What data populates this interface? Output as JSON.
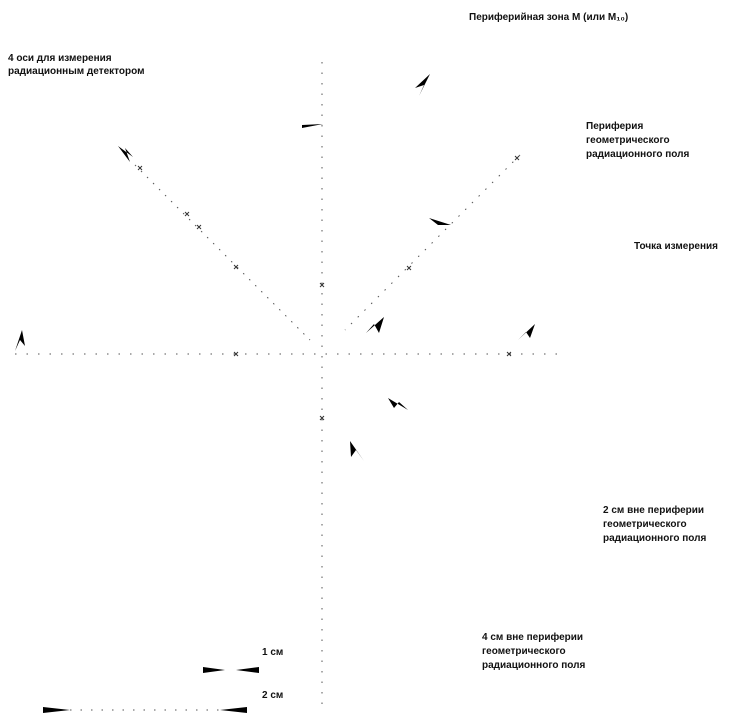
{
  "labels": {
    "peripheral_zone": "Периферийная зона M (или M₁₀)",
    "four_axes_line1": "4 оси для измерения",
    "four_axes_line2": "радиационным детектором",
    "geom_periphery_line1": "Периферия",
    "geom_periphery_line2": "геометрического",
    "geom_periphery_line3": "радиационного поля",
    "measurement_point": "Точка измерения",
    "outside_2cm_line1": "2 см вне периферии",
    "outside_2cm_line2": "геометрического",
    "outside_2cm_line3": "радиационного поля",
    "outside_4cm_line1": "4 см вне периферии",
    "outside_4cm_line2": "геометрического",
    "outside_4cm_line3": "радиационного поля",
    "scale_1cm": "1 см",
    "scale_2cm": "2 см"
  },
  "colors": {
    "ink": "#111111",
    "axis": "#555555",
    "background": "#ffffff"
  }
}
